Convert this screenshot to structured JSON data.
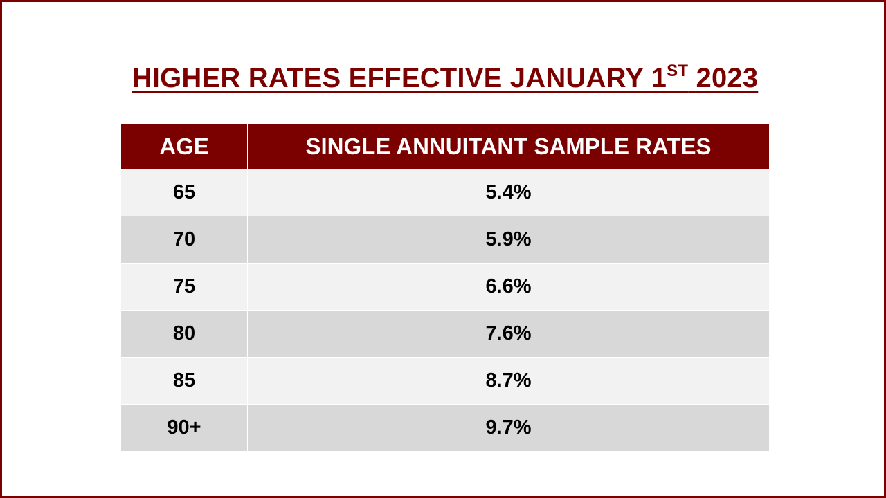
{
  "title": {
    "main": "HIGHER RATES EFFECTIVE JANUARY 1",
    "superscript": "ST",
    "year": " 2023"
  },
  "table": {
    "headers": {
      "age": "AGE",
      "rates": "SINGLE ANNUITANT SAMPLE RATES"
    },
    "rows": [
      {
        "age": "65",
        "rate": "5.4%"
      },
      {
        "age": "70",
        "rate": "5.9%"
      },
      {
        "age": "75",
        "rate": "6.6%"
      },
      {
        "age": "80",
        "rate": "7.6%"
      },
      {
        "age": "85",
        "rate": "8.7%"
      },
      {
        "age": "90+",
        "rate": "9.7%"
      }
    ]
  },
  "colors": {
    "accent": "#7b0000",
    "row_light": "#f2f2f2",
    "row_dark": "#d8d8d8"
  }
}
